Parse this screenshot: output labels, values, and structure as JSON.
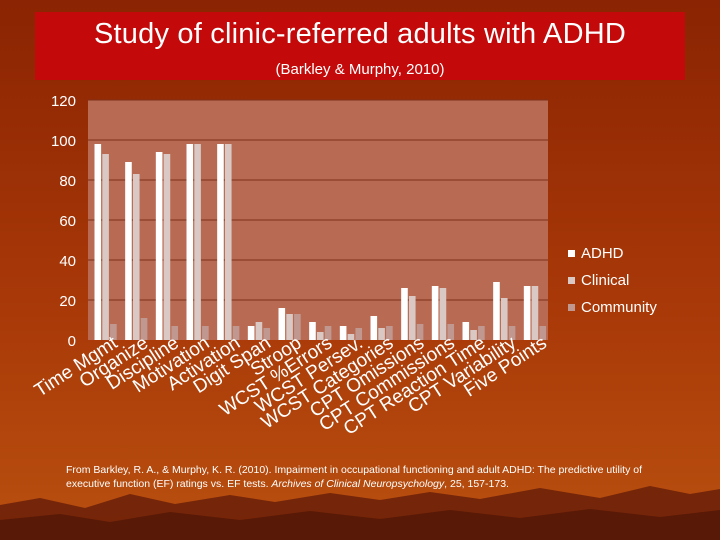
{
  "slide": {
    "title": "Study of clinic-referred adults with ADHD",
    "subtitle": "(Barkley & Murphy, 2010)"
  },
  "citation": {
    "part1": "From Barkley, R. A., & Murphy, K. R. (2010).  Impairment in occupational functioning and adult ADHD: The predictive utility of executive function (EF) ratings vs. EF tests. ",
    "journal": "Archives of Clinical Neuropsychology",
    "part2": ", 25, 157-173."
  },
  "colors": {
    "background": "#9a2e05",
    "title_box": "#c3090a",
    "plot_area": "#b86b52",
    "gridline": "#7e3018",
    "adhd": "#ffffff",
    "clinical": "#d9c8c4",
    "community": "#c09890"
  },
  "chart_data": {
    "type": "bar",
    "title": "",
    "xlabel": "",
    "ylabel": "",
    "ylim": [
      0,
      120
    ],
    "yticks": [
      0,
      20,
      40,
      60,
      80,
      100,
      120
    ],
    "grid": true,
    "legend_position": "right",
    "categories": [
      "Time Mgmt",
      "Organize",
      "Discipline",
      "Motivation",
      "Activation",
      "Digit Span",
      "Stroop",
      "WCST %Errors",
      "WCST Persev.",
      "WCST Categories",
      "CPT Omissions",
      "CPT Commissions",
      "CPT Reaction Time",
      "CPT Variability",
      "Five Points"
    ],
    "series": [
      {
        "name": "ADHD",
        "values": [
          98,
          89,
          94,
          98,
          98,
          7,
          16,
          9,
          7,
          12,
          26,
          27,
          9,
          29,
          27
        ]
      },
      {
        "name": "Clinical",
        "values": [
          93,
          83,
          93,
          98,
          98,
          9,
          13,
          4,
          3,
          6,
          22,
          26,
          5,
          21,
          27
        ]
      },
      {
        "name": "Community",
        "values": [
          8,
          11,
          7,
          7,
          7,
          6,
          13,
          7,
          6,
          7,
          8,
          8,
          7,
          7,
          7
        ]
      }
    ]
  }
}
